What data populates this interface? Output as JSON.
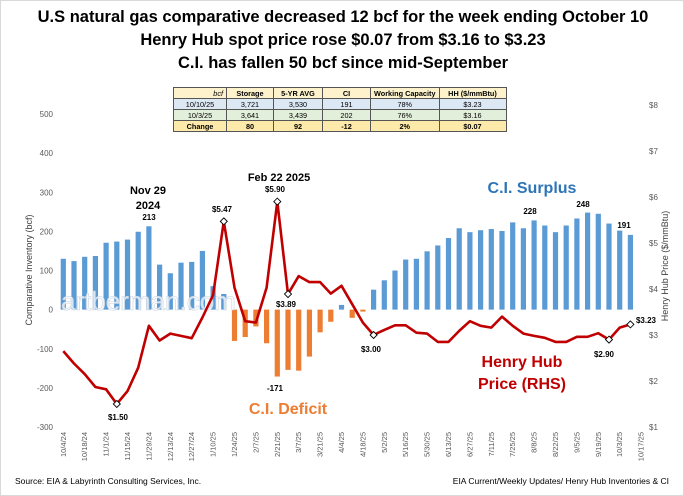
{
  "titles": [
    "U.S natural gas comparative decreased 12 bcf for the week ending October 10",
    "Henry Hub spot price rose $0.07 from $3.16  to $3.23",
    "C.I. has fallen 50 bcf since mid-September"
  ],
  "table": {
    "headers": [
      "bcf",
      "Storage",
      "5-YR AVG",
      "CI",
      "Working Capacity",
      "HH ($/mmBtu)"
    ],
    "rows": [
      [
        "10/10/25",
        "3,721",
        "3,530",
        "191",
        "78%",
        "$3.23"
      ],
      [
        "10/3/25",
        "3,641",
        "3,439",
        "202",
        "76%",
        "$3.16"
      ],
      [
        "Change",
        "80",
        "92",
        "-12",
        "2%",
        "$0.07"
      ]
    ]
  },
  "footer": {
    "left": "Source: EIA & Labyrinth Consulting Services, Inc.",
    "right": "EIA Current/Weekly Updates/ Henry Hub Inventories & CI"
  },
  "watermark": "artberman.com",
  "colors": {
    "surplus": "#5b9bd5",
    "deficit": "#ed7d31",
    "price": "#c00000"
  },
  "chart_data": {
    "type": "bar+line",
    "ylabel": "Comparative Inventory (bcf)",
    "y2label": "Henry Hub Price ($/mmBtu)",
    "ylim": [
      -300,
      500
    ],
    "yticks": [
      "500",
      "400",
      "300",
      "200",
      "100",
      "0",
      "-100",
      "-200",
      "-300"
    ],
    "y2lim": [
      1,
      8
    ],
    "y2ticks": [
      "$8",
      "$7",
      "$6",
      "$5",
      "$4",
      "$3",
      "$2",
      "$1"
    ],
    "grid": false,
    "xticks": [
      "10/4/24",
      "10/18/24",
      "11/1/24",
      "11/15/24",
      "11/29/24",
      "12/13/24",
      "12/27/24",
      "1/10/25",
      "1/24/25",
      "2/7/25",
      "2/21/25",
      "3/7/25",
      "3/21/25",
      "4/4/25",
      "4/18/25",
      "5/2/25",
      "5/16/25",
      "5/30/25",
      "6/13/25",
      "6/27/25",
      "7/11/25",
      "7/25/25",
      "8/8/25",
      "8/22/25",
      "9/5/25",
      "9/19/25",
      "10/3/25",
      "10/17/25"
    ],
    "dates": [
      "10/4/24",
      "10/11/24",
      "10/18/24",
      "10/25/24",
      "11/1/24",
      "11/8/24",
      "11/15/24",
      "11/22/24",
      "11/29/24",
      "12/6/24",
      "12/13/24",
      "12/20/24",
      "12/27/24",
      "1/3/25",
      "1/10/25",
      "1/17/25",
      "1/24/25",
      "1/31/25",
      "2/7/25",
      "2/14/25",
      "2/21/25",
      "2/28/25",
      "3/7/25",
      "3/14/25",
      "3/21/25",
      "3/28/25",
      "4/4/25",
      "4/11/25",
      "4/18/25",
      "4/25/25",
      "5/2/25",
      "5/9/25",
      "5/16/25",
      "5/23/25",
      "5/30/25",
      "6/6/25",
      "6/13/25",
      "6/20/25",
      "6/27/25",
      "7/4/25",
      "7/11/25",
      "7/18/25",
      "7/25/25",
      "8/1/25",
      "8/8/25",
      "8/15/25",
      "8/22/25",
      "8/29/25",
      "9/5/25",
      "9/12/25",
      "9/19/25",
      "9/26/25",
      "10/3/25",
      "10/10/25"
    ],
    "series": [
      {
        "name": "C.I.",
        "kind": "bar",
        "values": [
          130,
          124,
          135,
          137,
          171,
          174,
          179,
          199,
          213,
          115,
          93,
          120,
          122,
          150,
          60,
          40,
          -80,
          -70,
          -43,
          -86,
          -171,
          -154,
          -156,
          -120,
          -58,
          -31,
          12,
          -21,
          -5,
          51,
          75,
          100,
          128,
          130,
          149,
          164,
          183,
          208,
          198,
          203,
          206,
          201,
          223,
          208,
          228,
          215,
          198,
          215,
          233,
          248,
          245,
          220,
          202,
          191
        ]
      },
      {
        "name": "Henry Hub Price (RHS)",
        "kind": "line",
        "axis": "right",
        "values": [
          2.65,
          2.38,
          2.15,
          1.87,
          1.82,
          1.5,
          1.78,
          2.29,
          3.2,
          2.88,
          3.03,
          2.98,
          2.93,
          3.38,
          3.87,
          5.47,
          4.03,
          3.3,
          3.27,
          4.03,
          5.9,
          3.89,
          4.28,
          4.15,
          4.15,
          3.9,
          4.07,
          3.67,
          3.27,
          3.0,
          3.11,
          3.21,
          3.21,
          3.05,
          3.03,
          2.85,
          2.85,
          3.09,
          3.3,
          3.2,
          3.16,
          3.4,
          3.2,
          3.03,
          2.98,
          2.94,
          2.85,
          2.85,
          2.96,
          2.96,
          3.04,
          2.9,
          3.16,
          3.23
        ]
      }
    ],
    "annotations": {
      "nov_peak_1": "Nov 29",
      "nov_peak_2": "2024",
      "nov_value": "213",
      "price_547": "$5.47",
      "feb_peak": "Feb 22 2025",
      "price_590": "$5.90",
      "price_389": "$3.89",
      "deficit_min": "-171",
      "deficit_label": "C.I. Deficit",
      "price_300": "$3.00",
      "surplus_label": "C.I. Surplus",
      "v228": "228",
      "v248": "248",
      "v191": "191",
      "hh_label_1": "Henry Hub",
      "hh_label_2": "Price (RHS)",
      "price_290": "$2.90",
      "price_323": "$3.23",
      "price_150": "$1.50"
    }
  }
}
